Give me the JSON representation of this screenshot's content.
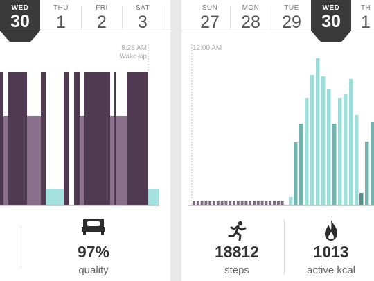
{
  "left": {
    "dates": [
      {
        "dow": "WED",
        "day": "30",
        "active": true
      },
      {
        "dow": "THU",
        "day": "1"
      },
      {
        "dow": "FRI",
        "day": "2"
      },
      {
        "dow": "SAT",
        "day": "3"
      }
    ],
    "wake_time": "8:28 AM",
    "wake_label": "Wake-up",
    "quality_value": "97%",
    "quality_label": "quality",
    "quality_icon": "bed-icon"
  },
  "right": {
    "dates": [
      {
        "dow": "SUN",
        "day": "27"
      },
      {
        "dow": "MON",
        "day": "28"
      },
      {
        "dow": "TUE",
        "day": "29"
      },
      {
        "dow": "WED",
        "day": "30",
        "active": true
      },
      {
        "dow": "TH",
        "day": "1"
      }
    ],
    "start_time": "12:00 AM",
    "steps_value": "18812",
    "steps_label": "steps",
    "steps_icon": "running-person-icon",
    "kcal_value": "1013",
    "kcal_label": "active kcal",
    "kcal_icon": "flame-icon"
  },
  "colors": {
    "deep_sleep": "#4f3a52",
    "light_sleep": "#8a6f8c",
    "awake": "#a3e0de",
    "inactive": "#7f6682",
    "steps_dark": "#72b3b0",
    "steps_light": "#9ddcd9",
    "steps_darkest": "#4f8f8c",
    "badge": "#3a3a3a"
  }
}
